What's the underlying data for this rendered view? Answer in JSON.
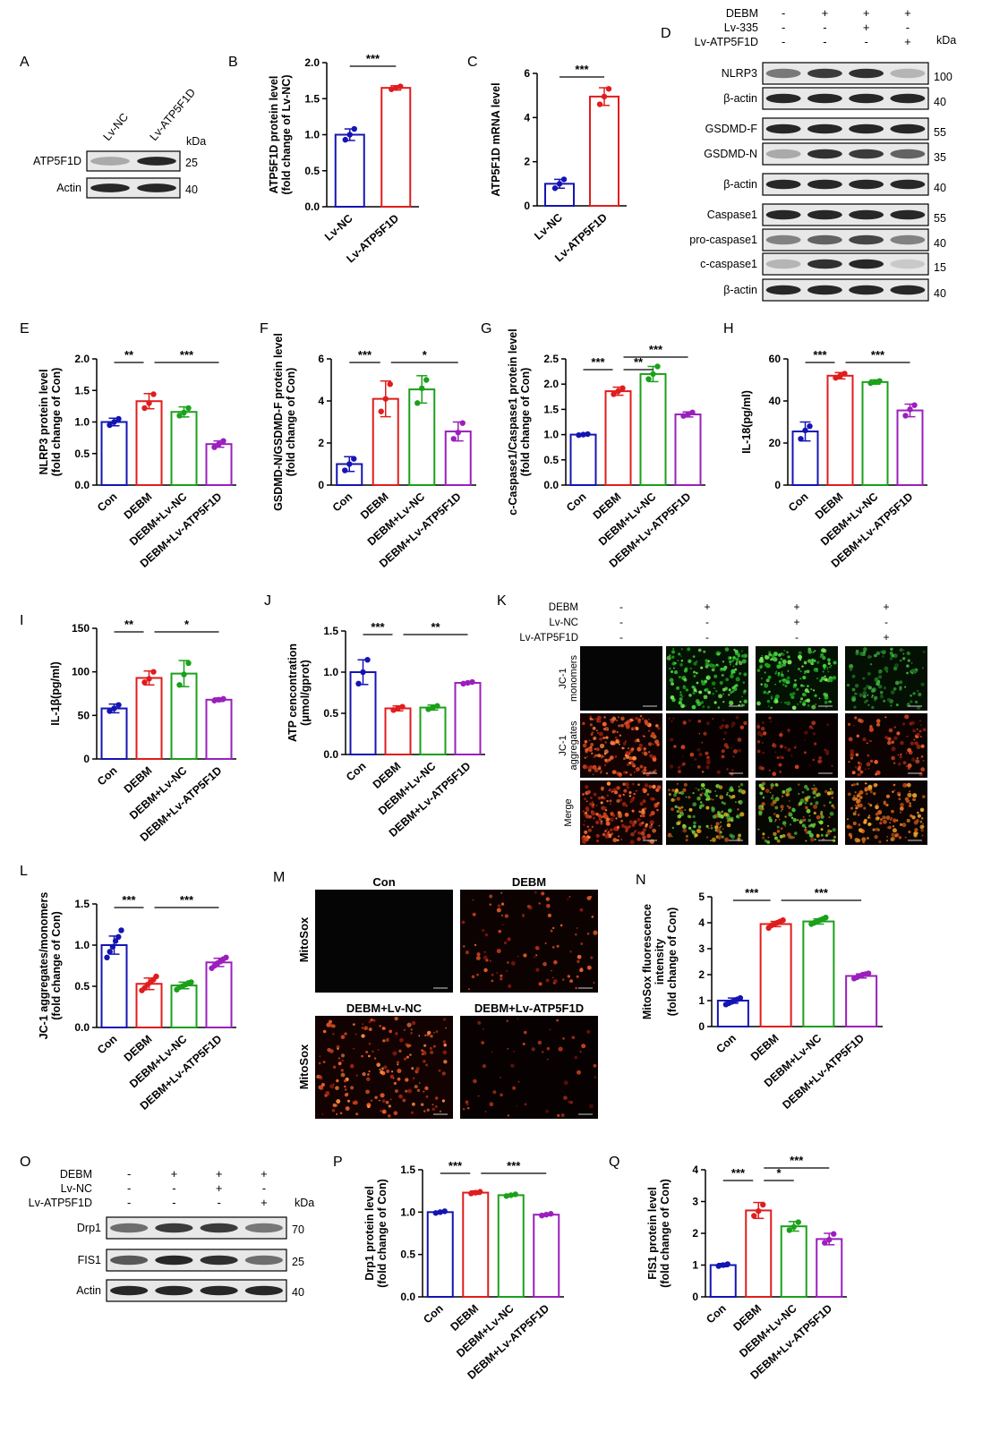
{
  "colors": {
    "blue": "#1414b4",
    "red": "#e01d1d",
    "green": "#1aa11a",
    "purple": "#9b1fbd",
    "blot_bg": "#e8e8e8",
    "band": "#1c1c1c"
  },
  "chart_data": [
    {
      "panel": "B",
      "type": "bar",
      "categories": [
        "Lv-NC",
        "Lv-ATP5F1D"
      ],
      "values": [
        1.0,
        1.65
      ],
      "errors": [
        0.08,
        0.03
      ],
      "points": [
        [
          0.93,
          1.0,
          1.08
        ],
        [
          1.63,
          1.65,
          1.67
        ]
      ],
      "ylabel": [
        "ATP5F1D protein level",
        "(fold change of Lv-NC)"
      ],
      "ylim": [
        0,
        2.0
      ],
      "yticks": [
        0.0,
        0.5,
        1.0,
        1.5,
        2.0
      ],
      "sig": [
        {
          "from": 0,
          "to": 1,
          "label": "***"
        }
      ]
    },
    {
      "panel": "C",
      "type": "bar",
      "categories": [
        "Lv-NC",
        "Lv-ATP5F1D"
      ],
      "values": [
        1.0,
        4.95
      ],
      "errors": [
        0.2,
        0.4
      ],
      "points": [
        [
          0.8,
          1.0,
          1.2
        ],
        [
          4.6,
          4.95,
          5.3
        ]
      ],
      "ylabel": [
        "ATP5F1D mRNA level"
      ],
      "ylim": [
        0,
        6
      ],
      "yticks": [
        0,
        2,
        4,
        6
      ],
      "sig": [
        {
          "from": 0,
          "to": 1,
          "label": "***"
        }
      ]
    },
    {
      "panel": "E",
      "type": "bar",
      "categories": [
        "Con",
        "DEBM",
        "DEBM+Lv-NC",
        "DEBM+Lv-ATP5F1D"
      ],
      "values": [
        1.0,
        1.33,
        1.16,
        0.65
      ],
      "errors": [
        0.06,
        0.12,
        0.08,
        0.05
      ],
      "points": [
        [
          0.95,
          1.0,
          1.05
        ],
        [
          1.22,
          1.3,
          1.44
        ],
        [
          1.1,
          1.15,
          1.22
        ],
        [
          0.6,
          0.65,
          0.7
        ]
      ],
      "ylabel": [
        "NLRP3 protein level",
        "(fold change of Con)"
      ],
      "ylim": [
        0,
        2.0
      ],
      "yticks": [
        0.0,
        0.5,
        1.0,
        1.5,
        2.0
      ],
      "sig": [
        {
          "from": 0,
          "to": 1,
          "label": "**"
        },
        {
          "from": 1,
          "to": 3,
          "label": "***"
        }
      ]
    },
    {
      "panel": "F",
      "type": "bar",
      "categories": [
        "Con",
        "DEBM",
        "DEBM+Lv-NC",
        "DEBM+Lv-ATP5F1D"
      ],
      "values": [
        1.0,
        4.1,
        4.55,
        2.55
      ],
      "errors": [
        0.35,
        0.85,
        0.65,
        0.45
      ],
      "points": [
        [
          0.7,
          1.0,
          1.25
        ],
        [
          3.5,
          4.1,
          4.8
        ],
        [
          3.9,
          4.6,
          5.0
        ],
        [
          2.2,
          2.5,
          2.95
        ]
      ],
      "ylabel": [
        "GSDMD-N/GSDMD-F protein level",
        "(fold change of Con)"
      ],
      "ylim": [
        0,
        6
      ],
      "yticks": [
        0,
        2,
        4,
        6
      ],
      "sig": [
        {
          "from": 0,
          "to": 1,
          "label": "***"
        },
        {
          "from": 1,
          "to": 3,
          "label": "*"
        }
      ]
    },
    {
      "panel": "G",
      "type": "bar",
      "categories": [
        "Con",
        "DEBM",
        "DEBM+Lv-NC",
        "DEBM+Lv-ATP5F1D"
      ],
      "values": [
        1.0,
        1.86,
        2.2,
        1.4
      ],
      "errors": [
        0.02,
        0.08,
        0.15,
        0.05
      ],
      "points": [
        [
          0.99,
          1.0,
          1.01
        ],
        [
          1.8,
          1.86,
          1.92
        ],
        [
          2.1,
          2.2,
          2.35
        ],
        [
          1.37,
          1.4,
          1.44
        ]
      ],
      "ylabel": [
        "c-Caspase1/Caspase1 protein level",
        "(fold change of Con)"
      ],
      "ylim": [
        0,
        2.5
      ],
      "yticks": [
        0.0,
        0.5,
        1.0,
        1.5,
        2.0,
        2.5
      ],
      "sig": [
        {
          "from": 0,
          "to": 1,
          "label": "***"
        },
        {
          "from": 1,
          "to": 2,
          "label": "**"
        },
        {
          "from": 1,
          "to": 3,
          "label": "***"
        }
      ]
    },
    {
      "panel": "H",
      "type": "bar",
      "categories": [
        "Con",
        "DEBM",
        "DEBM+Lv-NC",
        "DEBM+Lv-ATP5F1D"
      ],
      "values": [
        25.5,
        52,
        49,
        35.5
      ],
      "errors": [
        4.5,
        1.5,
        1,
        3
      ],
      "points": [
        [
          22,
          26,
          28
        ],
        [
          51,
          52,
          53
        ],
        [
          48.5,
          49,
          49.5
        ],
        [
          33,
          36,
          38
        ]
      ],
      "ylabel": [
        "IL-18(pg/ml)"
      ],
      "ylim": [
        0,
        60
      ],
      "yticks": [
        0,
        20,
        40,
        60
      ],
      "sig": [
        {
          "from": 0,
          "to": 1,
          "label": "***"
        },
        {
          "from": 1,
          "to": 3,
          "label": "***"
        }
      ]
    },
    {
      "panel": "I",
      "type": "bar",
      "categories": [
        "Con",
        "DEBM",
        "DEBM+Lv-NC",
        "DEBM+Lv-ATP5F1D"
      ],
      "values": [
        58,
        93,
        98,
        68
      ],
      "errors": [
        5,
        8,
        15,
        2
      ],
      "points": [
        [
          55,
          58,
          62
        ],
        [
          88,
          92,
          100
        ],
        [
          85,
          97,
          110
        ],
        [
          67,
          68,
          69
        ]
      ],
      "ylabel": [
        "IL-1β(pg/ml)"
      ],
      "ylim": [
        0,
        150
      ],
      "yticks": [
        0,
        50,
        100,
        150
      ],
      "sig": [
        {
          "from": 0,
          "to": 1,
          "label": "**"
        },
        {
          "from": 1,
          "to": 3,
          "label": "*"
        }
      ]
    },
    {
      "panel": "J",
      "type": "bar",
      "categories": [
        "Con",
        "DEBM",
        "DEBM+Lv-NC",
        "DEBM+Lv-ATP5F1D"
      ],
      "values": [
        1.0,
        0.56,
        0.57,
        0.87
      ],
      "errors": [
        0.15,
        0.03,
        0.03,
        0.01
      ],
      "points": [
        [
          0.86,
          1.0,
          1.15
        ],
        [
          0.54,
          0.56,
          0.58
        ],
        [
          0.55,
          0.57,
          0.59
        ],
        [
          0.86,
          0.87,
          0.88
        ]
      ],
      "ylabel": [
        "ATP cencontration",
        "(μmol/gprot)"
      ],
      "ylim": [
        0,
        1.5
      ],
      "yticks": [
        0.0,
        0.5,
        1.0,
        1.5
      ],
      "sig": [
        {
          "from": 0,
          "to": 1,
          "label": "***"
        },
        {
          "from": 1,
          "to": 3,
          "label": "**"
        }
      ]
    },
    {
      "panel": "L",
      "type": "bar",
      "categories": [
        "Con",
        "DEBM",
        "DEBM+Lv-NC",
        "DEBM+Lv-ATP5F1D"
      ],
      "values": [
        1.0,
        0.53,
        0.51,
        0.79
      ],
      "errors": [
        0.11,
        0.07,
        0.04,
        0.05
      ],
      "points": [
        [
          0.85,
          0.92,
          0.98,
          1.05,
          1.1,
          1.18
        ],
        [
          0.45,
          0.48,
          0.52,
          0.55,
          0.58,
          0.62
        ],
        [
          0.46,
          0.49,
          0.5,
          0.52,
          0.54,
          0.55
        ],
        [
          0.72,
          0.75,
          0.78,
          0.8,
          0.83,
          0.85
        ]
      ],
      "ylabel": [
        "JC-1 aggregates/monomers",
        "(fold change of Con)"
      ],
      "ylim": [
        0,
        1.5
      ],
      "yticks": [
        0.0,
        0.5,
        1.0,
        1.5
      ],
      "sig": [
        {
          "from": 0,
          "to": 1,
          "label": "***"
        },
        {
          "from": 1,
          "to": 3,
          "label": "***"
        }
      ]
    },
    {
      "panel": "N",
      "type": "bar",
      "categories": [
        "Con",
        "DEBM",
        "DEBM+Lv-NC",
        "DEBM+Lv-ATP5F1D"
      ],
      "values": [
        1.0,
        3.95,
        4.05,
        1.95
      ],
      "errors": [
        0.1,
        0.1,
        0.1,
        0.08
      ],
      "points": [
        [
          0.85,
          0.9,
          0.95,
          1.0,
          1.05,
          1.1
        ],
        [
          3.8,
          3.9,
          3.95,
          4.0,
          4.05,
          4.1
        ],
        [
          3.95,
          4.0,
          4.05,
          4.1,
          4.15,
          4.2
        ],
        [
          1.85,
          1.9,
          1.95,
          2.0,
          2.02,
          2.05
        ]
      ],
      "ylabel": [
        "MitoSox fluorescence",
        "intensity",
        "(fold change of Con)"
      ],
      "ylim": [
        0,
        5
      ],
      "yticks": [
        0,
        1,
        2,
        3,
        4,
        5
      ],
      "sig": [
        {
          "from": 0,
          "to": 1,
          "label": "***"
        },
        {
          "from": 1,
          "to": 3,
          "label": "***"
        }
      ]
    },
    {
      "panel": "P",
      "type": "bar",
      "categories": [
        "Con",
        "DEBM",
        "DEBM+Lv-NC",
        "DEBM+Lv-ATP5F1D"
      ],
      "values": [
        1.0,
        1.23,
        1.2,
        0.97
      ],
      "errors": [
        0.01,
        0.02,
        0.01,
        0.01
      ],
      "points": [
        [
          0.99,
          1.0,
          1.01
        ],
        [
          1.22,
          1.23,
          1.24
        ],
        [
          1.19,
          1.2,
          1.21
        ],
        [
          0.96,
          0.97,
          0.98
        ]
      ],
      "ylabel": [
        "Drp1 protein level",
        "(fold change of Con)"
      ],
      "ylim": [
        0,
        1.5
      ],
      "yticks": [
        0.0,
        0.5,
        1.0,
        1.5
      ],
      "sig": [
        {
          "from": 0,
          "to": 1,
          "label": "***"
        },
        {
          "from": 1,
          "to": 3,
          "label": "***"
        }
      ]
    },
    {
      "panel": "Q",
      "type": "bar",
      "categories": [
        "Con",
        "DEBM",
        "DEBM+Lv-NC",
        "DEBM+Lv-ATP5F1D"
      ],
      "values": [
        1.0,
        2.72,
        2.22,
        1.82
      ],
      "errors": [
        0.05,
        0.25,
        0.15,
        0.18
      ],
      "points": [
        [
          0.97,
          1.0,
          1.03
        ],
        [
          2.55,
          2.7,
          2.9
        ],
        [
          2.1,
          2.2,
          2.35
        ],
        [
          1.7,
          1.8,
          1.98
        ]
      ],
      "ylabel": [
        "FIS1 protein level",
        "(fold change of Con)"
      ],
      "ylim": [
        0,
        4
      ],
      "yticks": [
        0,
        1,
        2,
        3,
        4
      ],
      "sig": [
        {
          "from": 0,
          "to": 1,
          "label": "***"
        },
        {
          "from": 1,
          "to": 2,
          "label": "*"
        },
        {
          "from": 1,
          "to": 3,
          "label": "***"
        }
      ]
    }
  ],
  "blots": [
    {
      "panel": "A",
      "col_labels": [
        "Lv-NC",
        "Lv-ATP5F1D"
      ],
      "kda_header": "kDa",
      "rows": [
        {
          "label": "ATP5F1D",
          "kda": "25",
          "bands": [
            0.3,
            0.95
          ]
        },
        {
          "label": "Actin",
          "kda": "40",
          "bands": [
            0.95,
            0.95
          ]
        }
      ]
    },
    {
      "panel": "D",
      "treat_rows": [
        {
          "label": "DEBM",
          "signs": [
            "-",
            "+",
            "+",
            "+"
          ]
        },
        {
          "label": "Lv-335",
          "signs": [
            "-",
            "-",
            "+",
            "-"
          ]
        },
        {
          "label": "Lv-ATP5F1D",
          "signs": [
            "-",
            "-",
            "-",
            "+"
          ]
        }
      ],
      "kda_header": "kDa",
      "rows": [
        {
          "label": "NLRP3",
          "kda": "100",
          "bands": [
            0.55,
            0.85,
            0.9,
            0.25
          ]
        },
        {
          "label": "β-actin",
          "kda": "40",
          "bands": [
            0.95,
            0.95,
            0.95,
            0.95
          ]
        },
        {
          "label": "GSDMD-F",
          "kda": "55",
          "bands": [
            0.95,
            0.95,
            0.95,
            0.95
          ]
        },
        {
          "label": "GSDMD-N",
          "kda": "35",
          "bands": [
            0.3,
            0.9,
            0.85,
            0.65
          ]
        },
        {
          "label": "β-actin",
          "kda": "40",
          "bands": [
            0.95,
            0.95,
            0.95,
            0.95
          ]
        },
        {
          "label": "Caspase1",
          "kda": "55",
          "bands": [
            0.95,
            0.95,
            0.95,
            0.95
          ]
        },
        {
          "label": "pro-caspase1",
          "kda": "40",
          "bands": [
            0.5,
            0.65,
            0.8,
            0.5
          ]
        },
        {
          "label": "c-caspase1",
          "kda": "15",
          "bands": [
            0.25,
            0.9,
            0.95,
            0.15
          ]
        },
        {
          "label": "β-actin",
          "kda": "40",
          "bands": [
            0.95,
            0.95,
            0.95,
            0.95
          ]
        }
      ]
    },
    {
      "panel": "O",
      "treat_rows": [
        {
          "label": "DEBM",
          "signs": [
            "-",
            "+",
            "+",
            "+"
          ]
        },
        {
          "label": "Lv-NC",
          "signs": [
            "-",
            "-",
            "+",
            "-"
          ]
        },
        {
          "label": "Lv-ATP5F1D",
          "signs": [
            "-",
            "-",
            "-",
            "+"
          ]
        }
      ],
      "kda_header": "kDa",
      "rows": [
        {
          "label": "Drp1",
          "kda": "70",
          "bands": [
            0.6,
            0.85,
            0.85,
            0.55
          ]
        },
        {
          "label": "FIS1",
          "kda": "25",
          "bands": [
            0.7,
            0.95,
            0.9,
            0.6
          ]
        },
        {
          "label": "Actin",
          "kda": "40",
          "bands": [
            0.95,
            0.95,
            0.95,
            0.95
          ]
        }
      ]
    }
  ],
  "micrographs": [
    {
      "panel": "K",
      "treat_rows": [
        {
          "label": "DEBM",
          "signs": [
            "-",
            "+",
            "+",
            "+"
          ]
        },
        {
          "label": "Lv-NC",
          "signs": [
            "-",
            "-",
            "+",
            "-"
          ]
        },
        {
          "label": "Lv-ATP5F1D",
          "signs": [
            "-",
            "-",
            "-",
            "+"
          ]
        }
      ],
      "row_labels": [
        "JC-1 monomers",
        "JC-1 aggregates",
        "Merge"
      ],
      "cells": [
        [
          "dark",
          "green-high",
          "green-high",
          "green-low"
        ],
        [
          "red-high",
          "red-low",
          "red-low",
          "red-mid"
        ],
        [
          "red-high",
          "merge-green",
          "merge-green",
          "merge-orange"
        ]
      ]
    },
    {
      "panel": "M",
      "titles": [
        "Con",
        "DEBM",
        "DEBM+Lv-NC",
        "DEBM+Lv-ATP5F1D"
      ],
      "row_label": "MitoSox",
      "cells": [
        "dark",
        "red-mid",
        "red-high",
        "red-low"
      ]
    }
  ]
}
